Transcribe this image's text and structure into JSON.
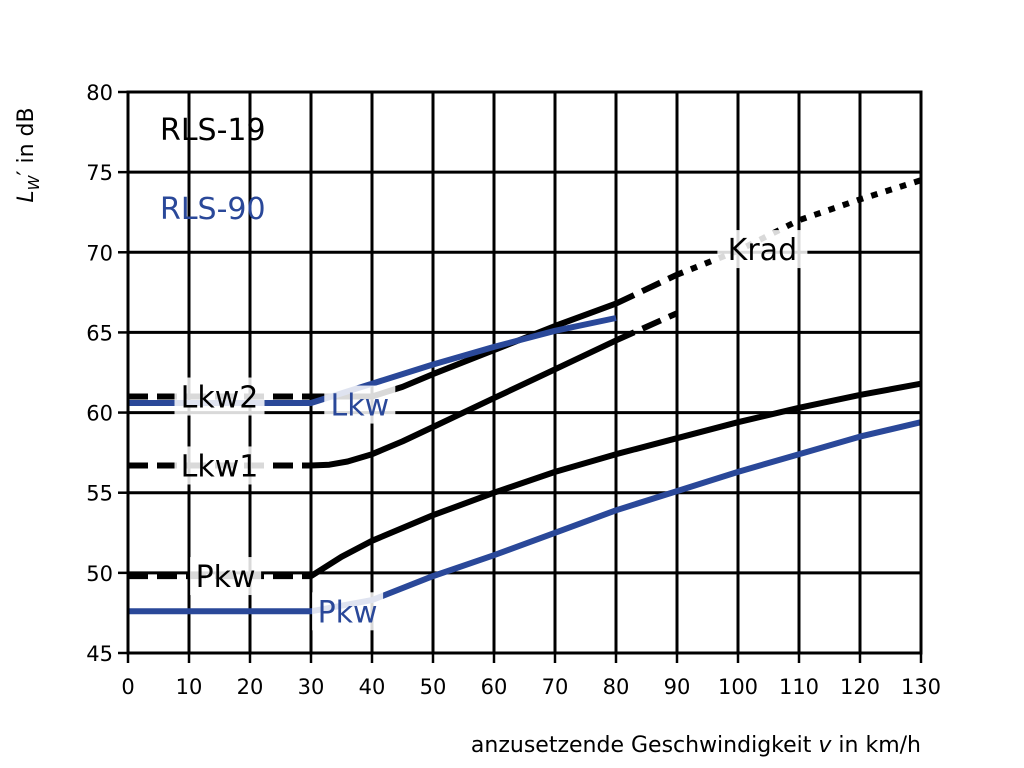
{
  "chart_data": {
    "type": "line",
    "title": "",
    "xlabel": "anzusetzende Geschwindigkeit v in km/h",
    "xlabel_parts": {
      "before": "anzusetzende Geschwindigkeit ",
      "var": "v",
      "after": " in km/h"
    },
    "ylabel_parts": {
      "L": "L",
      "sub": "W",
      "prime": "′",
      "rest": " in dB"
    },
    "xlim": [
      0,
      130
    ],
    "ylim": [
      45,
      80
    ],
    "xticks": [
      0,
      10,
      20,
      30,
      40,
      50,
      60,
      70,
      80,
      90,
      100,
      110,
      120,
      130
    ],
    "yticks": [
      45,
      50,
      55,
      60,
      65,
      70,
      75,
      80
    ],
    "grid": true,
    "legend": [
      {
        "text": "RLS-19",
        "color": "#000000"
      },
      {
        "text": "RLS-90",
        "color": "#2a4899"
      }
    ],
    "colors": {
      "rls19": "#000000",
      "rls90": "#2a4899"
    },
    "series": [
      {
        "name": "Pkw (RLS-19)",
        "standard": "RLS-19",
        "color": "#000000",
        "style": "dashed",
        "points": [
          [
            0,
            49.8
          ],
          [
            30,
            49.8
          ]
        ]
      },
      {
        "name": "Pkw (RLS-19)",
        "standard": "RLS-19",
        "color": "#000000",
        "style": "solid",
        "points": [
          [
            30,
            49.8
          ],
          [
            35,
            51.0
          ],
          [
            40,
            52.0
          ],
          [
            50,
            53.6
          ],
          [
            60,
            55.0
          ],
          [
            70,
            56.3
          ],
          [
            80,
            57.4
          ],
          [
            90,
            58.4
          ],
          [
            100,
            59.4
          ],
          [
            110,
            60.3
          ],
          [
            120,
            61.1
          ],
          [
            130,
            61.8
          ]
        ]
      },
      {
        "name": "Lkw1 (RLS-19)",
        "standard": "RLS-19",
        "color": "#000000",
        "style": "dashed",
        "points": [
          [
            0,
            56.7
          ],
          [
            30,
            56.7
          ]
        ]
      },
      {
        "name": "Lkw1 (RLS-19)",
        "standard": "RLS-19",
        "color": "#000000",
        "style": "solid",
        "points": [
          [
            30,
            56.7
          ],
          [
            33,
            56.75
          ],
          [
            36,
            56.95
          ],
          [
            40,
            57.4
          ],
          [
            45,
            58.2
          ],
          [
            50,
            59.1
          ],
          [
            60,
            60.9
          ],
          [
            70,
            62.7
          ],
          [
            80,
            64.5
          ]
        ]
      },
      {
        "name": "Lkw1 (RLS-19)",
        "standard": "RLS-19",
        "color": "#000000",
        "style": "dashed",
        "points": [
          [
            80,
            64.5
          ],
          [
            90,
            66.2
          ]
        ]
      },
      {
        "name": "Lkw2 (RLS-19)",
        "standard": "RLS-19",
        "color": "#000000",
        "style": "dashed",
        "points": [
          [
            0,
            61.0
          ],
          [
            30,
            61.0
          ]
        ]
      },
      {
        "name": "Lkw2 (RLS-19)",
        "standard": "RLS-19",
        "color": "#000000",
        "style": "solid",
        "points": [
          [
            30,
            61.0
          ],
          [
            40,
            61.0
          ],
          [
            45,
            61.6
          ],
          [
            50,
            62.4
          ],
          [
            60,
            63.9
          ],
          [
            70,
            65.4
          ],
          [
            80,
            66.8
          ]
        ]
      },
      {
        "name": "Lkw2 (RLS-19)",
        "standard": "RLS-19",
        "color": "#000000",
        "style": "dashed",
        "points": [
          [
            80,
            66.8
          ],
          [
            90,
            68.6
          ]
        ]
      },
      {
        "name": "Krad (RLS-19)",
        "standard": "RLS-19",
        "color": "#000000",
        "style": "dotted",
        "points": [
          [
            90,
            68.6
          ],
          [
            100,
            70.1
          ],
          [
            110,
            72.0
          ],
          [
            120,
            73.3
          ],
          [
            130,
            74.5
          ]
        ]
      },
      {
        "name": "Pkw (RLS-90)",
        "standard": "RLS-90",
        "color": "#2a4899",
        "style": "solid",
        "points": [
          [
            0,
            47.6
          ],
          [
            30,
            47.6
          ],
          [
            40,
            48.3
          ],
          [
            50,
            49.8
          ],
          [
            60,
            51.1
          ],
          [
            70,
            52.5
          ],
          [
            80,
            53.9
          ],
          [
            90,
            55.1
          ],
          [
            100,
            56.3
          ],
          [
            110,
            57.4
          ],
          [
            120,
            58.5
          ],
          [
            130,
            59.4
          ]
        ]
      },
      {
        "name": "Lkw (RLS-90)",
        "standard": "RLS-90",
        "color": "#2a4899",
        "style": "solid",
        "points": [
          [
            0,
            60.6
          ],
          [
            30,
            60.6
          ],
          [
            40,
            61.8
          ],
          [
            50,
            63.0
          ],
          [
            60,
            64.1
          ],
          [
            70,
            65.1
          ],
          [
            80,
            65.9
          ]
        ]
      }
    ],
    "annotations": [
      {
        "text": "Lkw2",
        "x": 15,
        "y": 61.0,
        "color": "#000000"
      },
      {
        "text": "Lkw",
        "x": 38,
        "y": 60.5,
        "color": "#2a4899"
      },
      {
        "text": "Lkw1",
        "x": 15,
        "y": 56.7,
        "color": "#000000"
      },
      {
        "text": "Pkw",
        "x": 16,
        "y": 49.8,
        "color": "#000000"
      },
      {
        "text": "Pkw",
        "x": 36,
        "y": 47.6,
        "color": "#2a4899"
      },
      {
        "text": "Krad",
        "x": 104,
        "y": 70.2,
        "color": "#000000"
      }
    ]
  }
}
